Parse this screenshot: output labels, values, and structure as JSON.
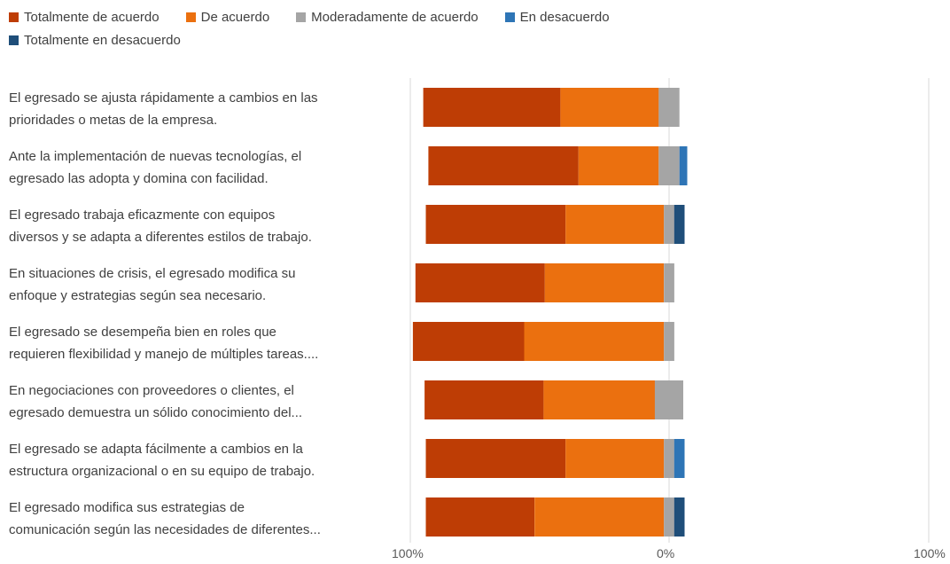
{
  "chart_data": {
    "type": "bar",
    "orientation": "horizontal",
    "stacked": "diverging",
    "legend_position": "top",
    "grid": true,
    "x_tick_labels": [
      "100%",
      "0%",
      "100%"
    ],
    "series": [
      {
        "name": "Totalmente de acuerdo",
        "color": "#BE3D05",
        "values": [
          53,
          58,
          54,
          50,
          43,
          46,
          54,
          42
        ]
      },
      {
        "name": "De acuerdo",
        "color": "#EB700F",
        "values": [
          38,
          31,
          38,
          46,
          54,
          43,
          38,
          50
        ]
      },
      {
        "name": "Moderadamente de acuerdo",
        "color": "#A5A5A5",
        "values": [
          8,
          8,
          4,
          4,
          4,
          11,
          4,
          4
        ]
      },
      {
        "name": "En desacuerdo",
        "color": "#2E75B6",
        "values": [
          0,
          3,
          0,
          0,
          0,
          0,
          4,
          0
        ]
      },
      {
        "name": "Totalmente en desacuerdo",
        "color": "#1F4E79",
        "values": [
          0,
          0,
          4,
          0,
          0,
          0,
          0,
          4
        ]
      }
    ],
    "categories": [
      [
        "El egresado se ajusta rápidamente a cambios en las",
        "prioridades o metas de la empresa."
      ],
      [
        "Ante la implementación de nuevas tecnologías, el",
        "egresado las adopta y domina con facilidad."
      ],
      [
        "El egresado trabaja eficazmente con equipos",
        "diversos y se adapta a diferentes estilos de trabajo."
      ],
      [
        "En situaciones de crisis, el egresado modifica su",
        "enfoque y estrategias según sea necesario."
      ],
      [
        "El egresado se desempeña bien en roles que",
        "requieren flexibilidad y manejo de múltiples tareas...."
      ],
      [
        "En negociaciones con proveedores o clientes, el",
        "egresado demuestra un sólido conocimiento del..."
      ],
      [
        "El egresado se adapta fácilmente a cambios en la",
        "estructura organizacional o en su equipo de trabajo."
      ],
      [
        "El egresado modifica sus estrategias de",
        "comunicación según las necesidades de diferentes..."
      ]
    ],
    "neutral_split": {
      "series_index": 2,
      "negative_fraction": 0.5
    }
  }
}
